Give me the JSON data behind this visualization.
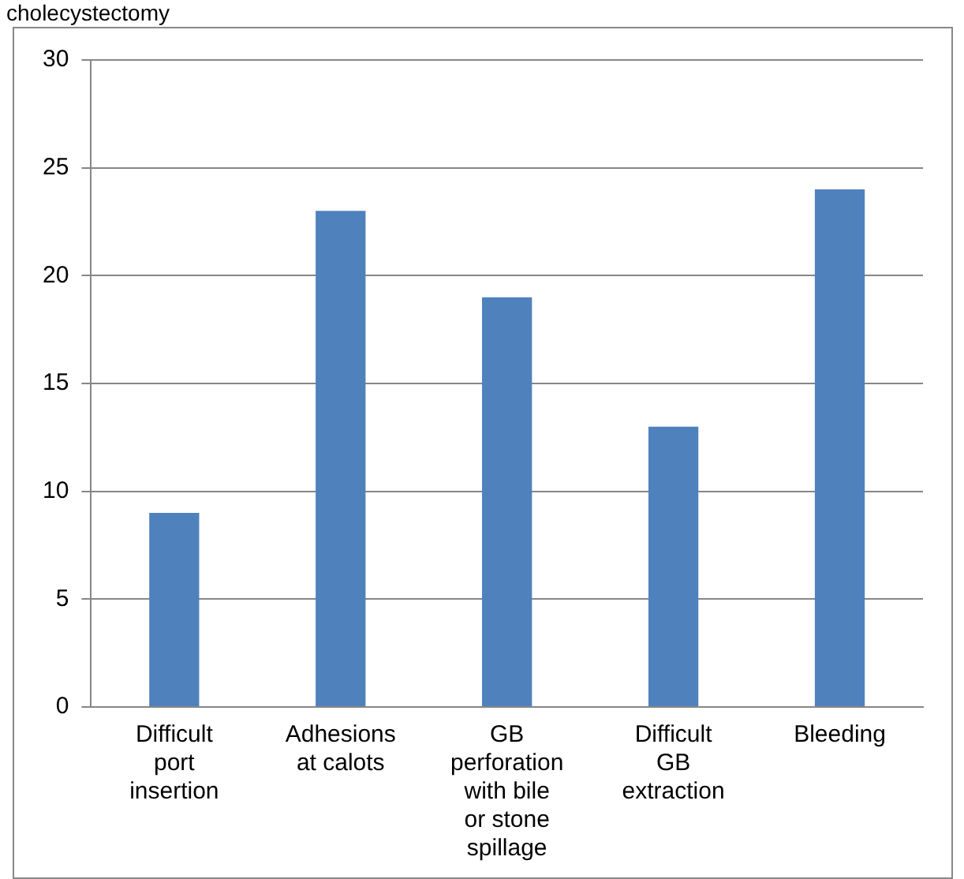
{
  "chart_data": {
    "type": "bar",
    "title": "cholecystectomy",
    "categories": [
      "Difficult port insertion",
      "Adhesions at calots",
      "GB perforation with bile or stone spillage",
      "Difficult GB extraction",
      "Bleeding"
    ],
    "values": [
      9,
      23,
      19,
      13,
      24
    ],
    "color": "#4f81bd",
    "ylim": [
      0,
      30
    ],
    "yticks": [
      0,
      5,
      10,
      15,
      20,
      25,
      30
    ],
    "grid": "y",
    "legend": false
  }
}
